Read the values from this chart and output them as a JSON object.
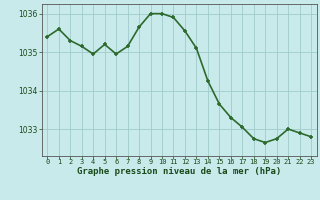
{
  "x": [
    0,
    1,
    2,
    3,
    4,
    5,
    6,
    7,
    8,
    9,
    10,
    11,
    12,
    13,
    14,
    15,
    16,
    17,
    18,
    19,
    20,
    21,
    22,
    23
  ],
  "y": [
    1035.4,
    1035.6,
    1035.3,
    1035.15,
    1034.95,
    1035.2,
    1034.95,
    1035.15,
    1035.65,
    1036.0,
    1036.0,
    1035.9,
    1035.55,
    1035.1,
    1034.25,
    1033.65,
    1033.3,
    1033.05,
    1032.75,
    1032.65,
    1032.75,
    1033.0,
    1032.9,
    1032.8
  ],
  "line_color": "#2d6a2d",
  "marker_color": "#2d6a2d",
  "bg_color": "#c8eaea",
  "grid_color": "#a0cccc",
  "axis_label_color": "#1a4a1a",
  "tick_label_color": "#1a4a1a",
  "xlabel": "Graphe pression niveau de la mer (hPa)",
  "ylim": [
    1032.3,
    1036.25
  ],
  "yticks": [
    1033,
    1034,
    1035,
    1036
  ],
  "xticks": [
    0,
    1,
    2,
    3,
    4,
    5,
    6,
    7,
    8,
    9,
    10,
    11,
    12,
    13,
    14,
    15,
    16,
    17,
    18,
    19,
    20,
    21,
    22,
    23
  ],
  "linewidth": 1.2,
  "markersize": 3.5
}
